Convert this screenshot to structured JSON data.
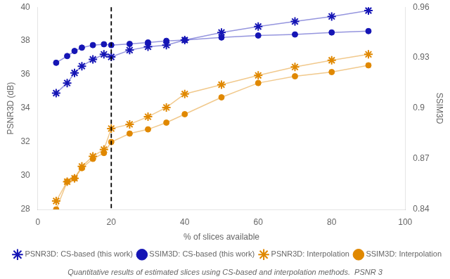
{
  "chart_data": {
    "type": "line",
    "x": [
      5,
      8,
      10,
      12,
      15,
      18,
      20,
      25,
      30,
      35,
      40,
      50,
      60,
      70,
      80,
      90
    ],
    "series": [
      {
        "name": "PSNR3D: CS-based (this work)",
        "color": "#1515b5",
        "marker": "star",
        "line_style": "solid",
        "values": [
          34.9,
          35.5,
          36.1,
          36.5,
          36.9,
          37.2,
          37.05,
          37.45,
          37.65,
          37.75,
          38.05,
          38.5,
          38.85,
          39.15,
          39.45,
          39.8
        ]
      },
      {
        "name": "SSIM3D: CS-based (this work)",
        "color": "#1515b5",
        "marker": "circle",
        "line_style": "solid",
        "values": [
          36.7,
          37.1,
          37.4,
          37.6,
          37.75,
          37.8,
          37.75,
          37.82,
          37.9,
          38.0,
          38.05,
          38.2,
          38.32,
          38.38,
          38.5,
          38.58
        ]
      },
      {
        "name": "PSNR3D: Interpolation",
        "color": "#e08800",
        "marker": "star",
        "line_style": "solid",
        "values": [
          28.5,
          29.65,
          29.85,
          30.55,
          31.15,
          31.55,
          32.8,
          33.05,
          33.5,
          34.05,
          34.85,
          35.4,
          35.95,
          36.45,
          36.85,
          37.2
        ]
      },
      {
        "name": "SSIM3D: Interpolation",
        "color": "#e08800",
        "marker": "circle",
        "line_style": "solid",
        "values": [
          28.0,
          29.65,
          29.85,
          30.45,
          31.0,
          31.35,
          32.0,
          32.5,
          32.75,
          33.15,
          33.65,
          34.65,
          35.5,
          35.9,
          36.15,
          36.55
        ]
      }
    ],
    "vline": 20,
    "xlabel": "% of slices available",
    "ylabel": "PSNR3D (dB)",
    "y2label": "SSIM3D",
    "xlim": [
      0,
      100
    ],
    "xticks": [
      0,
      20,
      40,
      60,
      80,
      100
    ],
    "ylim": [
      28,
      40
    ],
    "yticks": [
      28,
      30,
      32,
      34,
      36,
      38,
      40
    ],
    "y2lim": [
      0.84,
      0.96
    ],
    "y2ticks": [
      0.84,
      0.87,
      0.9,
      0.93,
      0.96
    ],
    "caption": "Quantitative results of estimated slices using CS-based and interpolation methods.  PSNR 3",
    "legend": "lower right",
    "grid": false
  }
}
